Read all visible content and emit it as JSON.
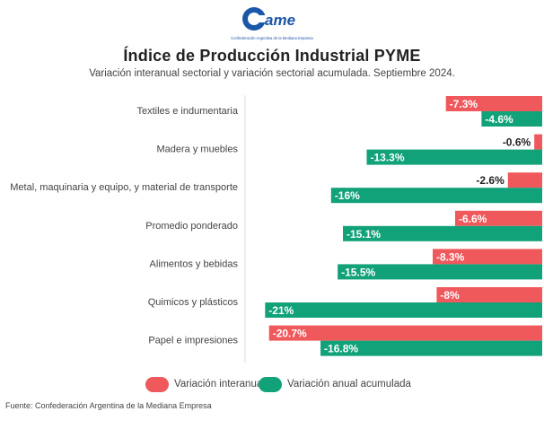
{
  "header": {
    "logo_text": "CAME",
    "logo_tagline": "Confederación Argentina de la Mediana Empresa",
    "title": "Índice de Producción Industrial PYME",
    "subtitle": "Variación interanual sectorial y variación sectorial acumulada. Septiembre 2024."
  },
  "colors": {
    "interanual": "#f0595c",
    "acumulada": "#12a27a",
    "logo_blue": "#1b57a8"
  },
  "legend": {
    "interanual_label": "Variación interanual",
    "acumulada_label": "Variación anual acumulada"
  },
  "footer": {
    "source": "Fuente: Confederación Argentina de la Mediana Empresa"
  },
  "chart_data": {
    "type": "bar",
    "orientation": "horizontal",
    "categories": [
      "Textiles e indumentaria",
      "Madera y muebles",
      "Metal, maquinaria y equipo, y material de transporte",
      "Promedio ponderado",
      "Alimentos y bebidas",
      "Quimicos y plásticos",
      "Papel e impresiones"
    ],
    "series": [
      {
        "name": "Variación interanual",
        "values": [
          -7.3,
          -0.6,
          -2.6,
          -6.6,
          -8.3,
          -8,
          -20.7
        ],
        "labels": [
          "-7.3%",
          "-0.6%",
          "-2.6%",
          "-6.6%",
          "-8.3%",
          "-8%",
          "-20.7%"
        ]
      },
      {
        "name": "Variación anual acumulada",
        "values": [
          -4.6,
          -13.3,
          -16,
          -15.1,
          -15.5,
          -21,
          -16.8
        ],
        "labels": [
          "-4.6%",
          "-13.3%",
          "-16%",
          "-15.1%",
          "-15.5%",
          "-21%",
          "-16.8%"
        ]
      }
    ],
    "xlim": [
      -23,
      0
    ],
    "grid": false,
    "legend_position": "bottom"
  }
}
